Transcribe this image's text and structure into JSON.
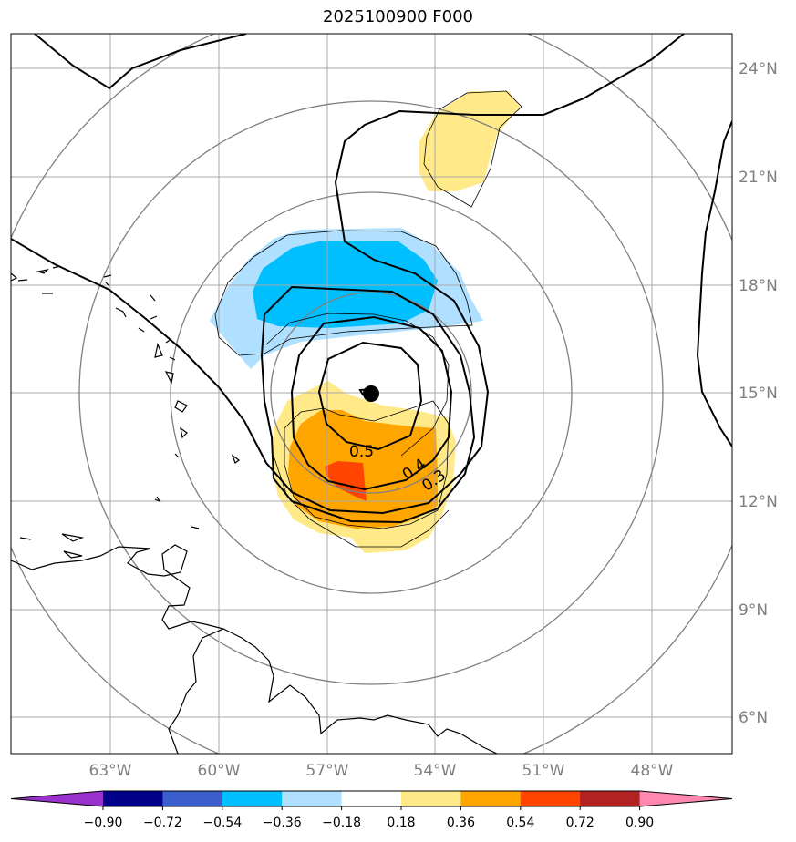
{
  "title": "2025100900 F000",
  "lon_labels": [
    "63°W",
    "60°W",
    "57°W",
    "54°W",
    "51°W",
    "48°W"
  ],
  "lat_labels": [
    "24°N",
    "21°N",
    "18°N",
    "15°N",
    "12°N",
    "9°N",
    "6°N"
  ],
  "contour_labels": [
    "0.5",
    "0.4",
    "0.3"
  ],
  "colorbar": {
    "ticks": [
      "−0.90",
      "−0.72",
      "−0.54",
      "−0.36",
      "−0.18",
      "0.18",
      "0.36",
      "0.54",
      "0.72",
      "0.90"
    ],
    "colors": [
      "#9932cc",
      "#00008b",
      "#3a5fcd",
      "#00bfff",
      "#b0e0ff",
      "#ffffff",
      "#ffe989",
      "#ffa500",
      "#ff4500",
      "#b22222",
      "#ff88b0"
    ]
  },
  "storm_center": {
    "lat": 15.0,
    "lon": -55.7
  }
}
